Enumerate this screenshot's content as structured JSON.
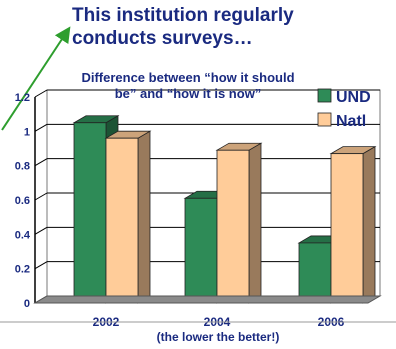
{
  "headline": "This institution regularly conducts surveys…",
  "chart_data": {
    "type": "bar",
    "title": "Difference between “how it should be” and “how it is now”",
    "categories": [
      "2002",
      "2004",
      "2006"
    ],
    "series": [
      {
        "name": "UND",
        "values": [
          1.05,
          0.61,
          0.35
        ],
        "color": "#2e8b57"
      },
      {
        "name": "Natl",
        "values": [
          0.96,
          0.89,
          0.87
        ],
        "color": "#ffcc99"
      }
    ],
    "ylim": [
      0,
      1.2
    ],
    "yticks": [
      "0",
      "0.2",
      "0.4",
      "0.6",
      "0.8",
      "1",
      "1.2"
    ],
    "xlabel_note": "(the lower the better!)",
    "grid": true,
    "legend_position": "top-right",
    "style": "3d"
  }
}
